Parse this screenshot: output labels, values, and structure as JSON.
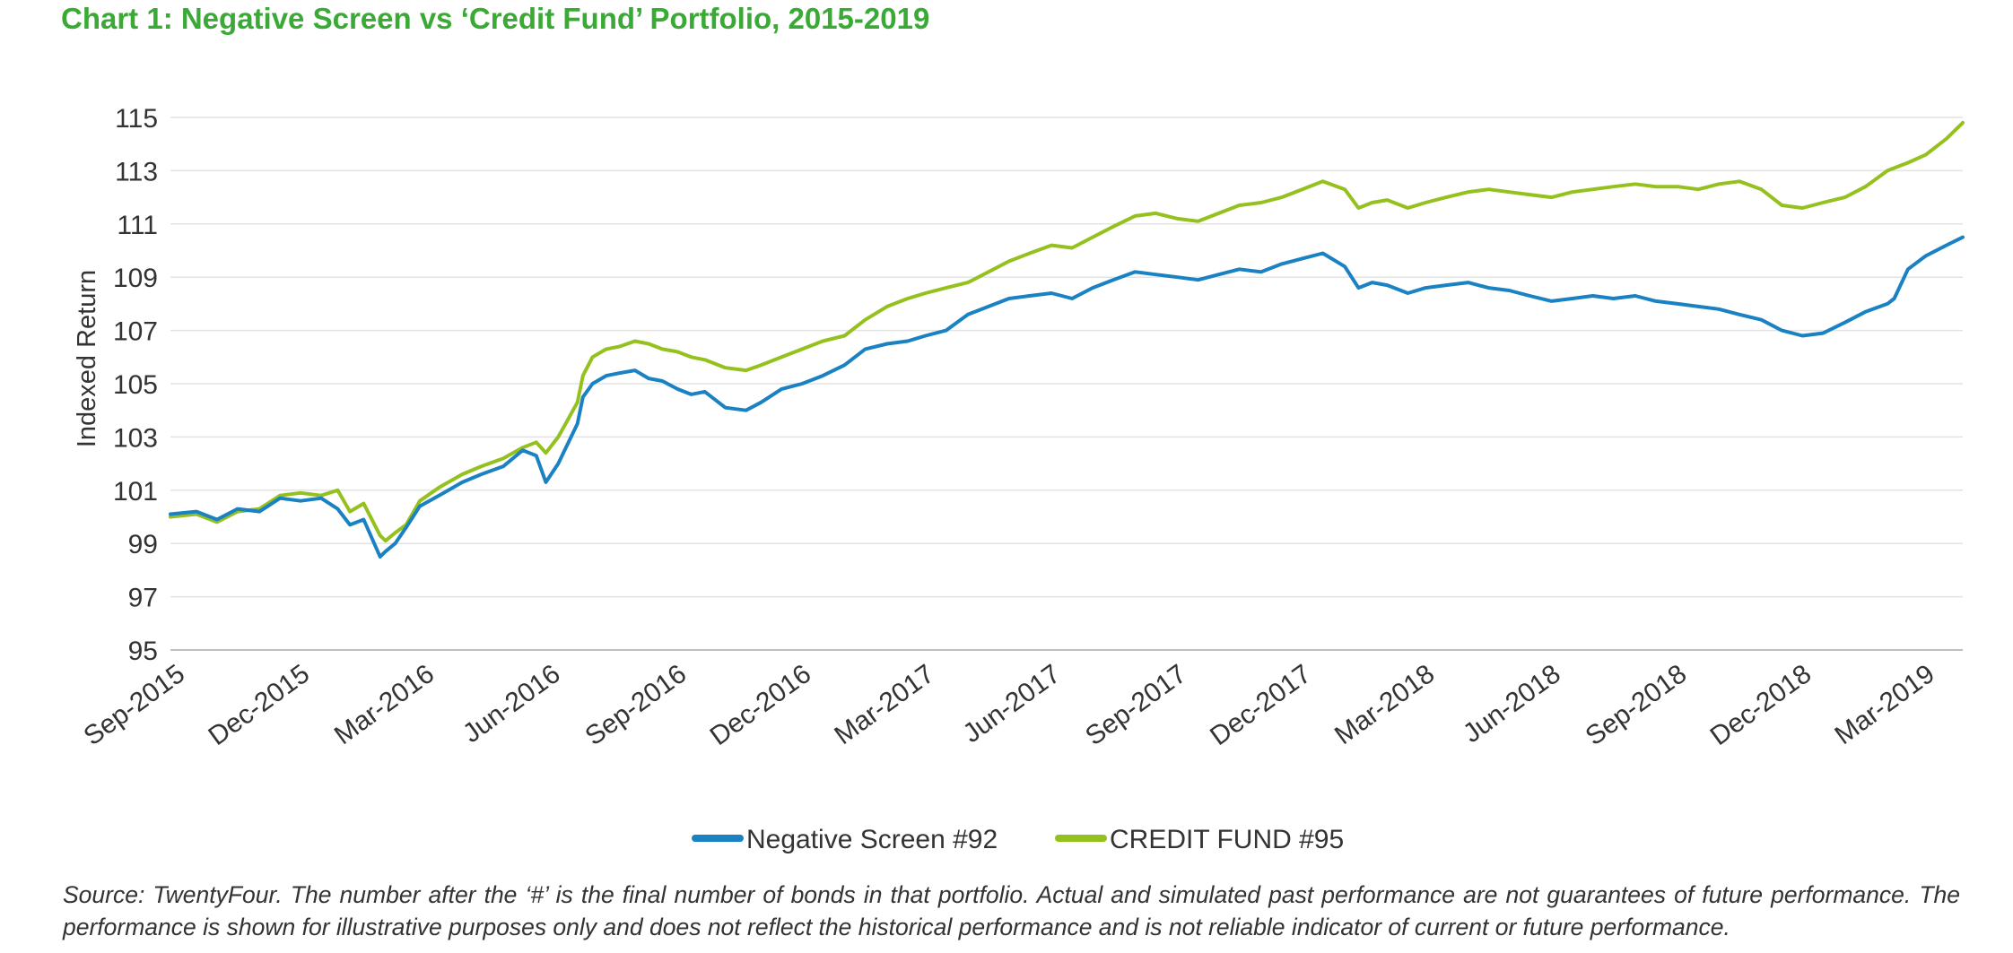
{
  "chart_data": {
    "type": "line",
    "title": "Chart 1: Negative Screen vs ‘Credit Fund’ Portfolio, 2015-2019",
    "ylabel": "Indexed Return",
    "xlabel": "",
    "ylim": [
      95,
      115
    ],
    "yticks": [
      "115",
      "113",
      "111",
      "109",
      "107",
      "105",
      "103",
      "101",
      "99",
      "97",
      "95"
    ],
    "xlim": [
      "2015-09",
      "2019-04"
    ],
    "xticks": [
      "Sep-2015",
      "Dec-2015",
      "Mar-2016",
      "Jun-2016",
      "Sep-2016",
      "Dec-2016",
      "Mar-2017",
      "Jun-2017",
      "Sep-2017",
      "Dec-2017",
      "Mar-2018",
      "Jun-2018",
      "Sep-2018",
      "Dec-2018",
      "Mar-2019"
    ],
    "grid": true,
    "legend_position": "bottom",
    "series": [
      {
        "name": "Negative Screen #92",
        "color": "#1a82c3",
        "x": [
          "2015-09-01",
          "2015-09-20",
          "2015-10-05",
          "2015-10-20",
          "2015-11-05",
          "2015-11-20",
          "2015-12-05",
          "2015-12-20",
          "2016-01-01",
          "2016-01-10",
          "2016-01-20",
          "2016-02-01",
          "2016-02-05",
          "2016-02-12",
          "2016-02-20",
          "2016-03-01",
          "2016-03-15",
          "2016-04-01",
          "2016-04-15",
          "2016-05-01",
          "2016-05-15",
          "2016-05-25",
          "2016-06-01",
          "2016-06-10",
          "2016-06-24",
          "2016-06-28",
          "2016-07-05",
          "2016-07-15",
          "2016-07-25",
          "2016-08-05",
          "2016-08-15",
          "2016-08-25",
          "2016-09-05",
          "2016-09-15",
          "2016-09-25",
          "2016-10-10",
          "2016-10-25",
          "2016-11-05",
          "2016-11-20",
          "2016-12-05",
          "2016-12-20",
          "2017-01-05",
          "2017-01-20",
          "2017-02-05",
          "2017-02-20",
          "2017-03-05",
          "2017-03-20",
          "2017-04-05",
          "2017-04-20",
          "2017-05-05",
          "2017-05-20",
          "2017-06-05",
          "2017-06-20",
          "2017-07-05",
          "2017-07-20",
          "2017-08-05",
          "2017-08-20",
          "2017-09-05",
          "2017-09-20",
          "2017-10-05",
          "2017-10-20",
          "2017-11-05",
          "2017-11-20",
          "2017-12-05",
          "2017-12-20",
          "2018-01-05",
          "2018-01-15",
          "2018-01-25",
          "2018-02-05",
          "2018-02-20",
          "2018-03-05",
          "2018-03-20",
          "2018-04-05",
          "2018-04-20",
          "2018-05-05",
          "2018-05-20",
          "2018-06-05",
          "2018-06-20",
          "2018-07-05",
          "2018-07-20",
          "2018-08-05",
          "2018-08-20",
          "2018-09-05",
          "2018-09-20",
          "2018-10-05",
          "2018-10-20",
          "2018-11-05",
          "2018-11-20",
          "2018-12-05",
          "2018-12-20",
          "2019-01-05",
          "2019-01-20",
          "2019-02-05",
          "2019-02-10",
          "2019-02-20",
          "2019-03-05",
          "2019-03-20",
          "2019-04-01"
        ],
        "values": [
          100.1,
          100.2,
          99.9,
          100.3,
          100.2,
          100.7,
          100.6,
          100.7,
          100.3,
          99.7,
          99.9,
          98.5,
          98.7,
          99.0,
          99.6,
          100.4,
          100.8,
          101.3,
          101.6,
          101.9,
          102.5,
          102.3,
          101.3,
          102.0,
          103.5,
          104.5,
          105.0,
          105.3,
          105.4,
          105.5,
          105.2,
          105.1,
          104.8,
          104.6,
          104.7,
          104.1,
          104.0,
          104.3,
          104.8,
          105.0,
          105.3,
          105.7,
          106.3,
          106.5,
          106.6,
          106.8,
          107.0,
          107.6,
          107.9,
          108.2,
          108.3,
          108.4,
          108.2,
          108.6,
          108.9,
          109.2,
          109.1,
          109.0,
          108.9,
          109.1,
          109.3,
          109.2,
          109.5,
          109.7,
          109.9,
          109.4,
          108.6,
          108.8,
          108.7,
          108.4,
          108.6,
          108.7,
          108.8,
          108.6,
          108.5,
          108.3,
          108.1,
          108.2,
          108.3,
          108.2,
          108.3,
          108.1,
          108.0,
          107.9,
          107.8,
          107.6,
          107.4,
          107.0,
          106.8,
          106.9,
          107.3,
          107.7,
          108.0,
          108.2,
          109.3,
          109.8,
          110.2,
          110.5
        ]
      },
      {
        "name": "CREDIT FUND #95",
        "color": "#95c11f",
        "x": [
          "2015-09-01",
          "2015-09-20",
          "2015-10-05",
          "2015-10-20",
          "2015-11-05",
          "2015-11-20",
          "2015-12-05",
          "2015-12-20",
          "2016-01-01",
          "2016-01-10",
          "2016-01-20",
          "2016-02-01",
          "2016-02-05",
          "2016-02-12",
          "2016-02-20",
          "2016-03-01",
          "2016-03-15",
          "2016-04-01",
          "2016-04-15",
          "2016-05-01",
          "2016-05-15",
          "2016-05-25",
          "2016-06-01",
          "2016-06-10",
          "2016-06-24",
          "2016-06-28",
          "2016-07-05",
          "2016-07-15",
          "2016-07-25",
          "2016-08-05",
          "2016-08-15",
          "2016-08-25",
          "2016-09-05",
          "2016-09-15",
          "2016-09-25",
          "2016-10-10",
          "2016-10-25",
          "2016-11-05",
          "2016-11-20",
          "2016-12-05",
          "2016-12-20",
          "2017-01-05",
          "2017-01-20",
          "2017-02-05",
          "2017-02-20",
          "2017-03-05",
          "2017-03-20",
          "2017-04-05",
          "2017-04-20",
          "2017-05-05",
          "2017-05-20",
          "2017-06-05",
          "2017-06-20",
          "2017-07-05",
          "2017-07-20",
          "2017-08-05",
          "2017-08-20",
          "2017-09-05",
          "2017-09-20",
          "2017-10-05",
          "2017-10-20",
          "2017-11-05",
          "2017-11-20",
          "2017-12-05",
          "2017-12-20",
          "2018-01-05",
          "2018-01-15",
          "2018-01-25",
          "2018-02-05",
          "2018-02-20",
          "2018-03-05",
          "2018-03-20",
          "2018-04-05",
          "2018-04-20",
          "2018-05-05",
          "2018-05-20",
          "2018-06-05",
          "2018-06-20",
          "2018-07-05",
          "2018-07-20",
          "2018-08-05",
          "2018-08-20",
          "2018-09-05",
          "2018-09-20",
          "2018-10-05",
          "2018-10-20",
          "2018-11-05",
          "2018-11-20",
          "2018-12-05",
          "2018-12-20",
          "2019-01-05",
          "2019-01-20",
          "2019-02-05",
          "2019-02-10",
          "2019-02-20",
          "2019-03-05",
          "2019-03-20",
          "2019-04-01"
        ],
        "values": [
          100.0,
          100.1,
          99.8,
          100.2,
          100.3,
          100.8,
          100.9,
          100.8,
          101.0,
          100.2,
          100.5,
          99.3,
          99.1,
          99.4,
          99.7,
          100.6,
          101.1,
          101.6,
          101.9,
          102.2,
          102.6,
          102.8,
          102.4,
          103.0,
          104.3,
          105.3,
          106.0,
          106.3,
          106.4,
          106.6,
          106.5,
          106.3,
          106.2,
          106.0,
          105.9,
          105.6,
          105.5,
          105.7,
          106.0,
          106.3,
          106.6,
          106.8,
          107.4,
          107.9,
          108.2,
          108.4,
          108.6,
          108.8,
          109.2,
          109.6,
          109.9,
          110.2,
          110.1,
          110.5,
          110.9,
          111.3,
          111.4,
          111.2,
          111.1,
          111.4,
          111.7,
          111.8,
          112.0,
          112.3,
          112.6,
          112.3,
          111.6,
          111.8,
          111.9,
          111.6,
          111.8,
          112.0,
          112.2,
          112.3,
          112.2,
          112.1,
          112.0,
          112.2,
          112.3,
          112.4,
          112.5,
          112.4,
          112.4,
          112.3,
          112.5,
          112.6,
          112.3,
          111.7,
          111.6,
          111.8,
          112.0,
          112.4,
          113.0,
          113.1,
          113.3,
          113.6,
          114.2,
          114.8
        ]
      }
    ]
  },
  "source_note": "Source: TwentyFour. The number after the ‘#’ is the final number of bonds in that portfolio. Actual and simulated past performance are not guarantees of future performance. The performance is shown for illustrative purposes only and does not reflect the historical performance and is not reliable indicator of current or future performance."
}
